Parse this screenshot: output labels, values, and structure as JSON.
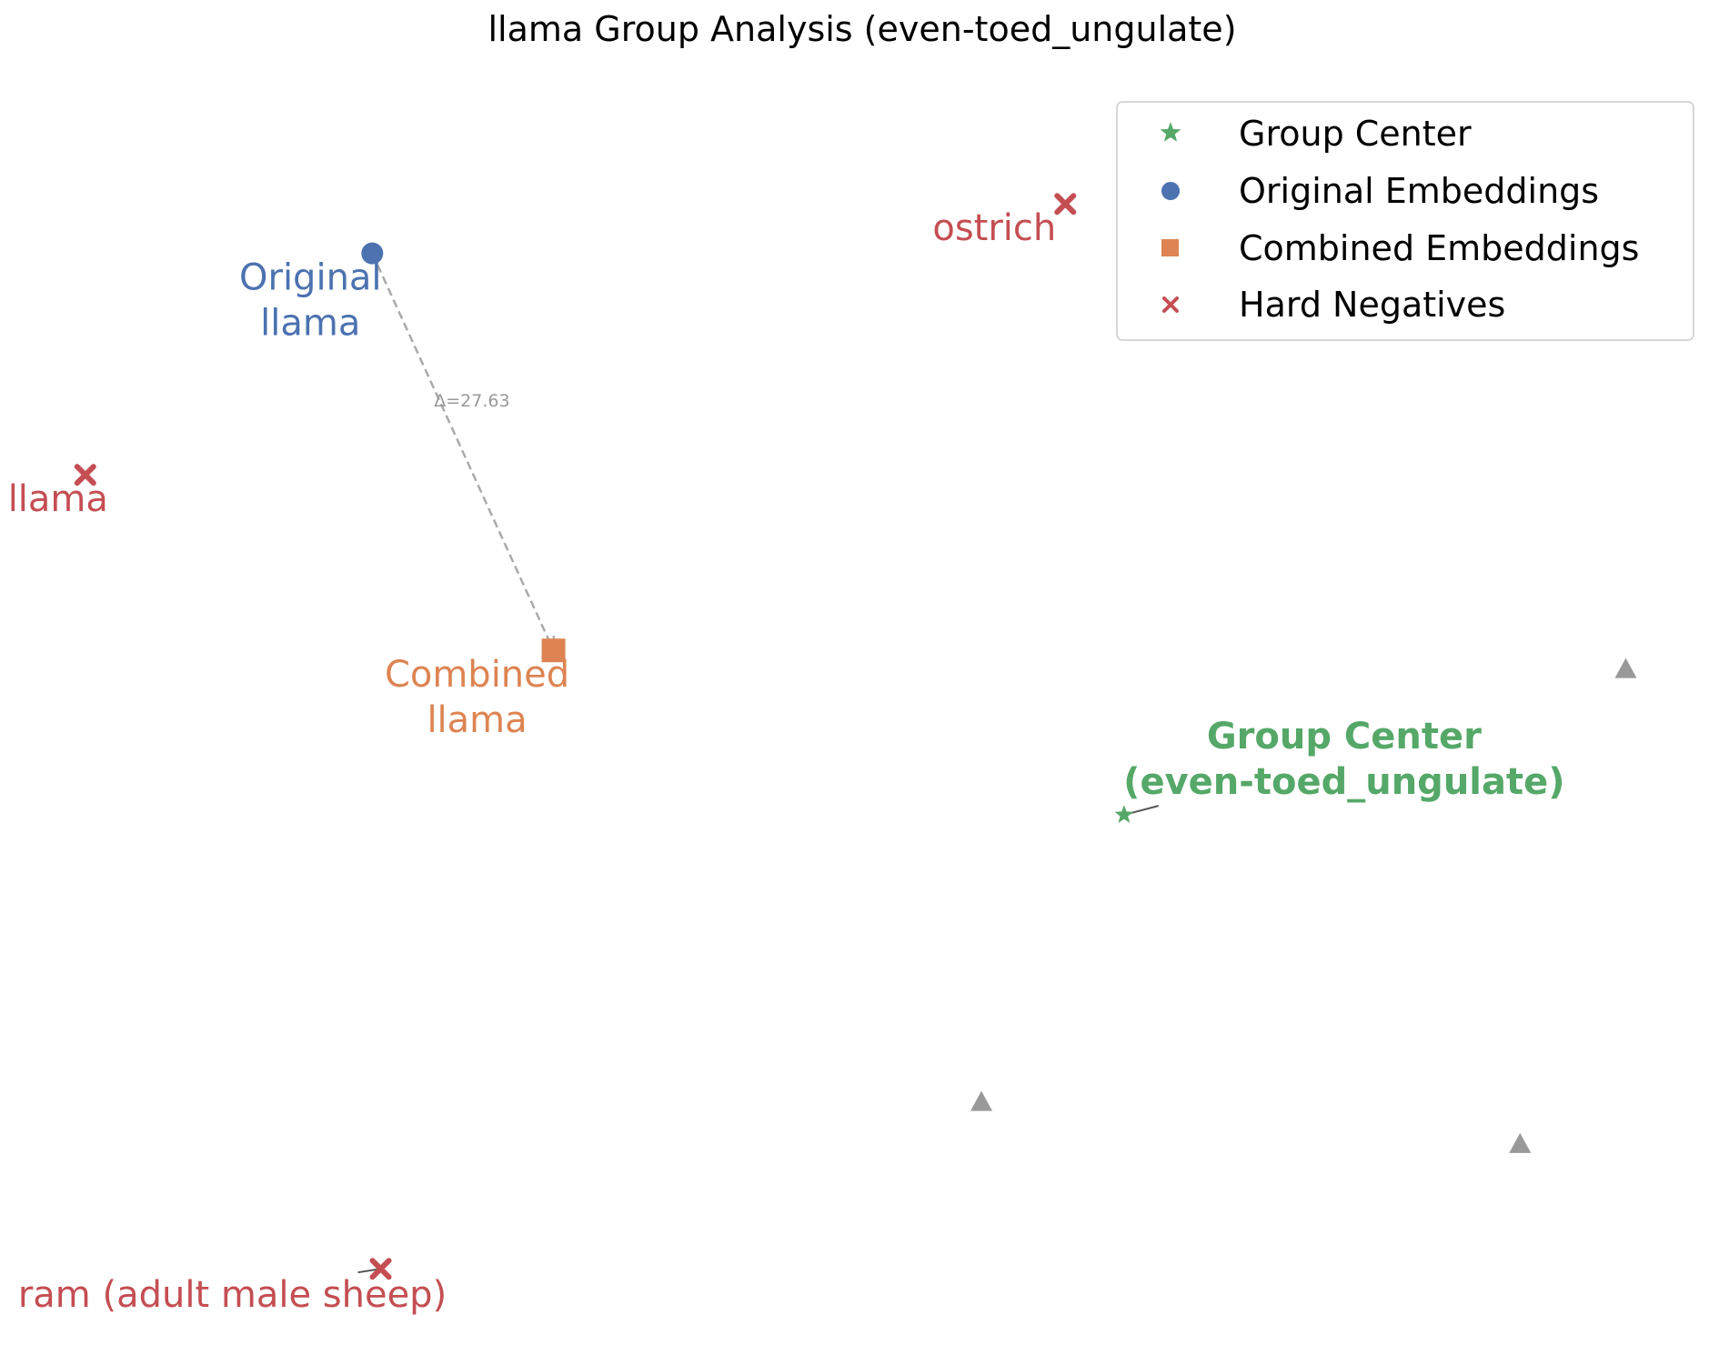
{
  "chart_data": {
    "type": "scatter",
    "title": "llama Group Analysis (even-toed_ungulate)",
    "xlabel": "",
    "ylabel": "",
    "xlim": [
      0,
      100
    ],
    "ylim": [
      0,
      100
    ],
    "axes_visible": false,
    "grid": false,
    "legend_position": "top-right",
    "legend": [
      {
        "label": "Group Center",
        "marker": "star",
        "color": "#55a868"
      },
      {
        "label": "Original Embeddings",
        "marker": "circle",
        "color": "#4c72b0"
      },
      {
        "label": "Combined Embeddings",
        "marker": "square",
        "color": "#dd8452"
      },
      {
        "label": "Hard Negatives",
        "marker": "x",
        "color": "#c44e52"
      }
    ],
    "series": [
      {
        "name": "Group Center",
        "marker": "star",
        "color": "#55a868",
        "points": [
          {
            "x": 65.9,
            "y": 42.2,
            "label": "Group Center\n(even-toed_ungulate)"
          }
        ]
      },
      {
        "name": "Original Embeddings",
        "marker": "circle",
        "color": "#4c72b0",
        "points": [
          {
            "x": 21.1,
            "y": 87.6,
            "label": "Original\nllama"
          }
        ]
      },
      {
        "name": "Combined Embeddings",
        "marker": "square",
        "color": "#dd8452",
        "points": [
          {
            "x": 31.9,
            "y": 55.5,
            "label": "Combined\nllama"
          }
        ]
      },
      {
        "name": "Hard Negatives",
        "marker": "x",
        "color": "#c44e52",
        "points": [
          {
            "x": 62.4,
            "y": 91.6,
            "label": "ostrich"
          },
          {
            "x": 4.0,
            "y": 69.7,
            "label": "llama"
          },
          {
            "x": 21.6,
            "y": 5.5,
            "label": "ram (adult male sheep)"
          }
        ]
      },
      {
        "name": "",
        "marker": "triangle",
        "color": "#999999",
        "points": [
          {
            "x": 95.8,
            "y": 54.0
          },
          {
            "x": 57.4,
            "y": 19.0
          },
          {
            "x": 89.5,
            "y": 15.6
          }
        ]
      }
    ],
    "annotations": [
      {
        "type": "arrow",
        "from": {
          "x": 21.1,
          "y": 87.6
        },
        "to": {
          "x": 31.9,
          "y": 55.5
        },
        "label": "Δ=27.63",
        "color": "#aaaaaa"
      }
    ]
  }
}
